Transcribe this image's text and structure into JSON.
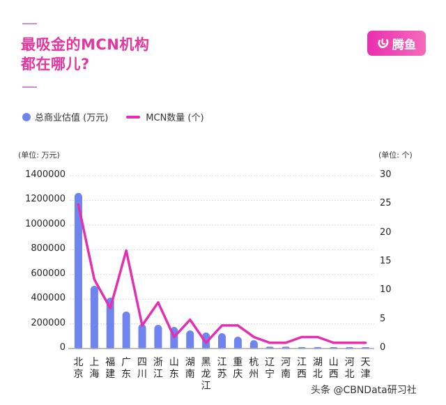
{
  "header": {
    "title_line1": "最吸金的MCN机构",
    "title_line2": "都在哪儿?",
    "logo_text": "腾鱼",
    "logo_icon": "tengyu-logo-icon"
  },
  "legend": {
    "bar_label": "总商业估值 (万元)",
    "line_label": "MCN数量 (个)"
  },
  "axes": {
    "left_unit": "(单位: 万元)",
    "right_unit": "(单位: 个)",
    "left_ticks": [
      "1400000",
      "1200000",
      "1000000",
      "800000",
      "600000",
      "400000",
      "200000",
      "0"
    ],
    "right_ticks": [
      "30",
      "25",
      "20",
      "15",
      "10",
      "5",
      "0"
    ]
  },
  "x_labels": [
    [
      "北",
      "京"
    ],
    [
      "上",
      "海"
    ],
    [
      "福",
      "建"
    ],
    [
      "广",
      "东"
    ],
    [
      "四",
      "川"
    ],
    [
      "浙",
      "江"
    ],
    [
      "山",
      "东"
    ],
    [
      "湖",
      "南"
    ],
    [
      "黑",
      "龙",
      "江"
    ],
    [
      "江",
      "苏"
    ],
    [
      "重",
      "庆"
    ],
    [
      "杭",
      "州"
    ],
    [
      "辽",
      "宁"
    ],
    [
      "河",
      "南"
    ],
    [
      "江",
      "西"
    ],
    [
      "湖",
      "北"
    ],
    [
      "山",
      "西"
    ],
    [
      "河",
      "北"
    ],
    [
      "天",
      "津"
    ]
  ],
  "footer": {
    "watermark": "头条 @CBNData研习社"
  },
  "colors": {
    "bar": "#6f84ee",
    "line": "#e32fb0",
    "title": "#e4369e",
    "grid": "#d8d8d8",
    "axis": "#b5b5b5"
  },
  "chart_data": {
    "type": "bar",
    "title": "最吸金的MCN机构都在哪儿?",
    "categories": [
      "北京",
      "上海",
      "福建",
      "广东",
      "四川",
      "浙江",
      "山东",
      "湖南",
      "黑龙江",
      "江苏",
      "重庆",
      "杭州",
      "辽宁",
      "河南",
      "江西",
      "湖北",
      "山西",
      "河北",
      "天津"
    ],
    "series": [
      {
        "name": "总商业估值 (万元)",
        "type": "bar",
        "axis": "left",
        "values": [
          1260000,
          508000,
          412000,
          300000,
          198000,
          192000,
          175000,
          147000,
          130000,
          124000,
          96000,
          68000,
          15000,
          15000,
          12000,
          12000,
          5000,
          5000,
          5000
        ]
      },
      {
        "name": "MCN数量 (个)",
        "type": "line",
        "axis": "right",
        "values": [
          25,
          12,
          7,
          17,
          4,
          8,
          2,
          5,
          1,
          4,
          4,
          2,
          1,
          1,
          2,
          2,
          1,
          1,
          1
        ]
      }
    ],
    "xlabel": "",
    "ylabel": "(单位: 万元)",
    "ylabel_right": "(单位: 个)",
    "ylim": [
      0,
      1400000
    ],
    "ylim_right": [
      0,
      30
    ],
    "yticks": [
      0,
      200000,
      400000,
      600000,
      800000,
      1000000,
      1200000,
      1400000
    ],
    "yticks_right": [
      0,
      5,
      10,
      15,
      20,
      25,
      30
    ],
    "grid": true,
    "legend_position": "top-left"
  }
}
